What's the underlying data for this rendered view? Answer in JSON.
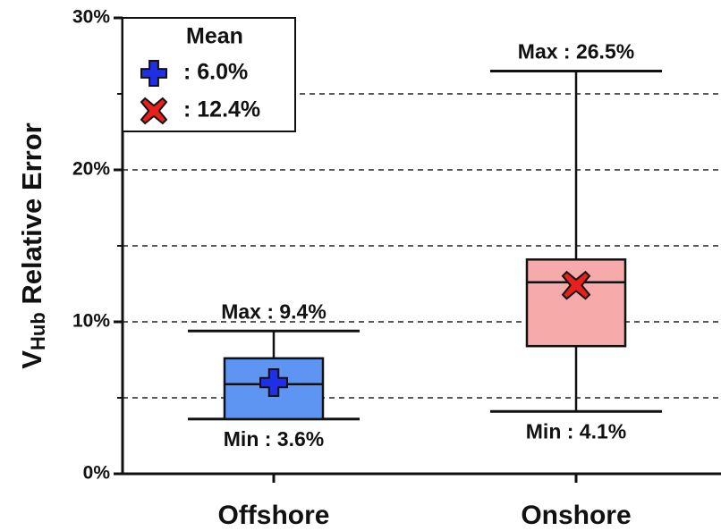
{
  "chart_data": {
    "type": "box",
    "y_label": [
      "V",
      "Hub",
      " Relative Error"
    ],
    "categories": [
      "Offshore",
      "Onshore"
    ],
    "series": [
      {
        "name": "Offshore",
        "color": "#5f95f2",
        "mean_color": "#1f2fe8",
        "mean_marker": "plus",
        "min": 3.6,
        "q1": 3.6,
        "median": 5.9,
        "q3": 7.6,
        "max": 9.4,
        "mean": 6.0,
        "max_label": "Max : 9.4%",
        "min_label": "Min : 3.6%",
        "mean_label": ": 6.0%"
      },
      {
        "name": "Onshore",
        "color": "#f6aaaa",
        "mean_color": "#e8201c",
        "mean_marker": "cross",
        "min": 4.1,
        "q1": 8.4,
        "median": 12.6,
        "q3": 14.1,
        "max": 26.5,
        "mean": 12.4,
        "max_label": "Max : 26.5%",
        "min_label": "Min : 4.1%",
        "mean_label": ": 12.4%"
      }
    ],
    "legend_title": "Mean",
    "ylim": [
      0,
      30
    ],
    "yticks": [
      {
        "value": 0,
        "label": "0%"
      },
      {
        "value": 10,
        "label": "10%"
      },
      {
        "value": 20,
        "label": "20%"
      },
      {
        "value": 30,
        "label": "30%"
      }
    ],
    "minor_yticks": [
      5,
      15,
      25
    ],
    "grid": true
  }
}
